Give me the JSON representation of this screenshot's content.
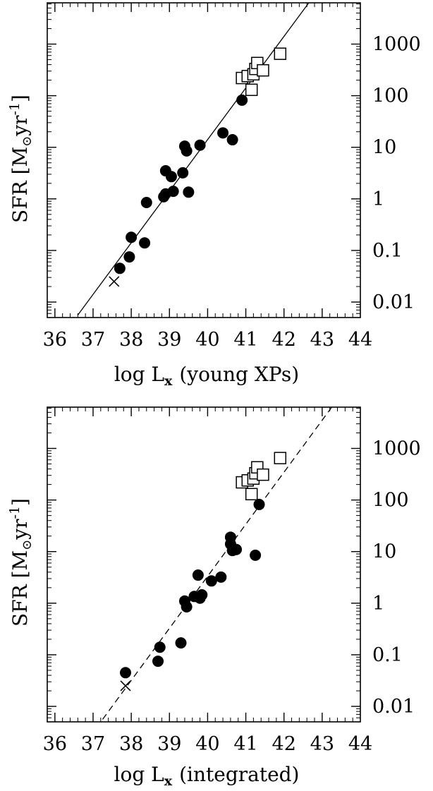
{
  "chart_data": [
    {
      "type": "scatter",
      "xlabel": "log L",
      "xlabel_sub": "x",
      "xlabel_paren": "(young XPs)",
      "ylabel": "SFR [M",
      "ylabel_sub": "⊙",
      "ylabel_unit": "yr",
      "ylabel_sup": "-1",
      "ylabel_close": "]",
      "xlim": [
        35.8,
        44.0
      ],
      "ylim_log10": [
        -2.3,
        3.8
      ],
      "x_ticks": [
        36,
        37,
        38,
        39,
        40,
        41,
        42,
        43,
        44
      ],
      "y_ticks": [
        0.01,
        0.1,
        1,
        10,
        100,
        1000
      ],
      "y_tick_labels": [
        "0.01",
        "0.1",
        "1",
        "10",
        "100",
        "1000"
      ],
      "y_scale": "log",
      "fit_line": {
        "style": "solid",
        "points": [
          [
            36.6,
            0.0056
          ],
          [
            42.65,
            6300
          ]
        ]
      },
      "series": [
        {
          "marker": "filled-circle",
          "x": [
            37.7,
            37.95,
            38.0,
            38.35,
            38.4,
            38.85,
            38.9,
            38.9,
            39.05,
            39.1,
            39.35,
            39.4,
            39.45,
            39.5,
            39.8,
            40.4,
            40.65,
            40.9
          ],
          "y": [
            0.045,
            0.075,
            0.18,
            0.14,
            0.85,
            1.1,
            1.25,
            3.5,
            2.7,
            1.4,
            3.2,
            10.5,
            8.5,
            1.35,
            11,
            19,
            14,
            82
          ]
        },
        {
          "marker": "open-square",
          "x": [
            40.9,
            41.05,
            41.15,
            41.2,
            41.25,
            41.3,
            41.45,
            41.9
          ],
          "y": [
            220,
            240,
            130,
            260,
            330,
            430,
            310,
            650
          ]
        },
        {
          "marker": "cross",
          "x": [
            37.55
          ],
          "y": [
            0.025
          ]
        }
      ]
    },
    {
      "type": "scatter",
      "xlabel": "log L",
      "xlabel_sub": "x",
      "xlabel_paren": "(integrated)",
      "ylabel": "SFR [M",
      "ylabel_sub": "⊙",
      "ylabel_unit": "yr",
      "ylabel_sup": "-1",
      "ylabel_close": "]",
      "xlim": [
        35.8,
        44.0
      ],
      "ylim_log10": [
        -2.3,
        3.8
      ],
      "x_ticks": [
        36,
        37,
        38,
        39,
        40,
        41,
        42,
        43,
        44
      ],
      "y_ticks": [
        0.01,
        0.1,
        1,
        10,
        100,
        1000
      ],
      "y_tick_labels": [
        "0.01",
        "0.1",
        "1",
        "10",
        "100",
        "1000"
      ],
      "y_scale": "log",
      "fit_line": {
        "style": "dashed",
        "points": [
          [
            37.25,
            0.0056
          ],
          [
            43.25,
            6300
          ]
        ]
      },
      "series": [
        {
          "marker": "filled-circle",
          "x": [
            37.85,
            38.7,
            38.75,
            39.3,
            39.4,
            39.45,
            39.65,
            39.75,
            39.8,
            39.85,
            40.1,
            40.35,
            40.6,
            40.6,
            40.65,
            40.75,
            41.25,
            41.35
          ],
          "y": [
            0.045,
            0.075,
            0.14,
            0.17,
            1.1,
            0.85,
            1.35,
            3.5,
            1.25,
            1.45,
            2.7,
            3.2,
            19,
            14,
            10.5,
            11,
            8.5,
            82
          ]
        },
        {
          "marker": "open-square",
          "x": [
            40.9,
            41.05,
            41.15,
            41.2,
            41.25,
            41.3,
            41.45,
            41.9
          ],
          "y": [
            220,
            240,
            130,
            260,
            330,
            430,
            310,
            650
          ]
        },
        {
          "marker": "cross",
          "x": [
            37.85
          ],
          "y": [
            0.025
          ]
        }
      ]
    }
  ]
}
